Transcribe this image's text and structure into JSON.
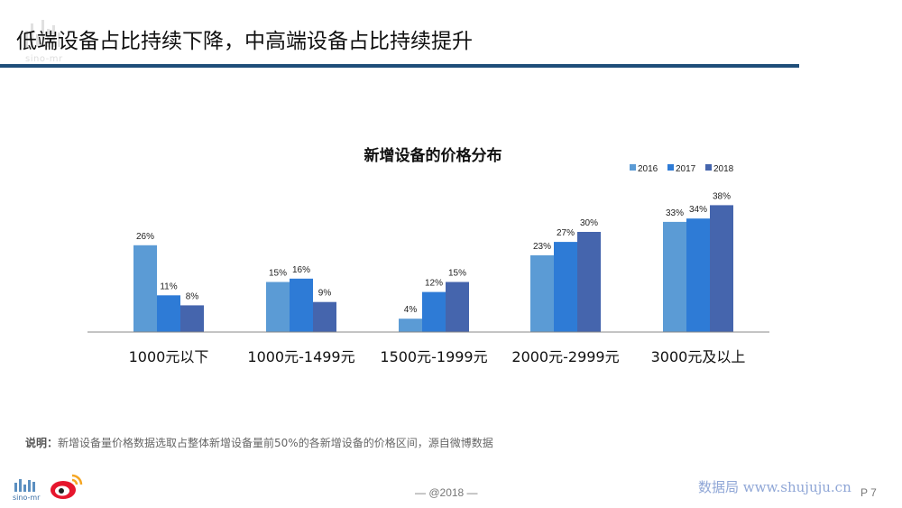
{
  "header": {
    "title": "低端设备占比持续下降，中高端设备占比持续提升",
    "logo_text": "sino-mr"
  },
  "chart_data": {
    "type": "bar",
    "title": "新增设备的价格分布",
    "categories": [
      "1000元以下",
      "1000元-1499元",
      "1500元-1999元",
      "2000元-2999元",
      "3000元及以上"
    ],
    "series": [
      {
        "name": "2016",
        "color": "#5b9bd5",
        "values": [
          26,
          15,
          4,
          23,
          33
        ],
        "labels": [
          "26%",
          "15%",
          "4%",
          "23%",
          "33%"
        ]
      },
      {
        "name": "2017",
        "color": "#2e7bd6",
        "values": [
          11,
          16,
          12,
          27,
          34
        ],
        "labels": [
          "11%",
          "16%",
          "12%",
          "27%",
          "34%"
        ]
      },
      {
        "name": "2018",
        "color": "#4565ad",
        "values": [
          8,
          9,
          15,
          30,
          38
        ],
        "labels": [
          "8%",
          "9%",
          "15%",
          "30%",
          "38%"
        ]
      }
    ],
    "unit": "%",
    "ylim": [
      0,
      38
    ],
    "grid": false,
    "legend_position": "top-right"
  },
  "note": {
    "label": "说明：",
    "text": "新增设备量价格数据选取占整体新增设备量前50%的各新增设备的价格区间，源自微博数据"
  },
  "footer": {
    "center_text": "— @2018 —",
    "watermark": "数据局 www.shujuju.cn",
    "page": "P 7",
    "logo_text": "sino-mr"
  }
}
